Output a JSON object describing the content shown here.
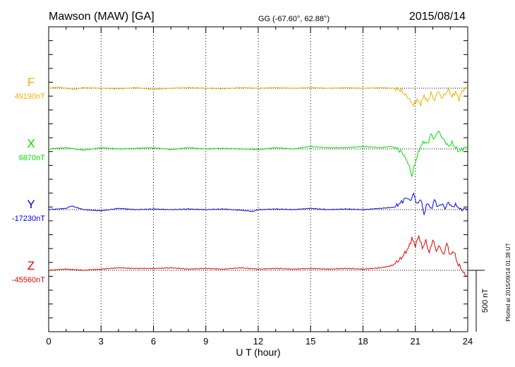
{
  "header": {
    "station": "Mawson (MAW)  [GA]",
    "coords": "GG (-67.60°,  62.88°)",
    "date": "2015/08/14"
  },
  "footer": {
    "plotted": "Plotted at 2015/09/14 01:38 UT"
  },
  "colors": {
    "F": "#f0b000",
    "X": "#00e000",
    "Y": "#0000e0",
    "Z": "#e00000",
    "axis": "#000000"
  },
  "chart_data": {
    "type": "line",
    "title": "Mawson (MAW)  [GA]",
    "xlabel": "U T (hour)",
    "xlim": [
      0,
      24
    ],
    "x_ticks": [
      "0",
      "3",
      "6",
      "9",
      "12",
      "15",
      "18",
      "21",
      "24"
    ],
    "grid": "vertical dotted",
    "scale_bar": {
      "label": "500 nT",
      "value": 500
    },
    "series": [
      {
        "name": "F",
        "baseline_label": "49190nT",
        "points": [
          [
            0,
            0
          ],
          [
            0.5,
            10
          ],
          [
            1,
            0
          ],
          [
            1.5,
            -10
          ],
          [
            2,
            5
          ],
          [
            3,
            0
          ],
          [
            4,
            -5
          ],
          [
            5,
            5
          ],
          [
            6,
            -10
          ],
          [
            7,
            0
          ],
          [
            8,
            5
          ],
          [
            9,
            0
          ],
          [
            10,
            -5
          ],
          [
            11,
            5
          ],
          [
            12,
            0
          ],
          [
            13,
            5
          ],
          [
            14,
            0
          ],
          [
            15,
            5
          ],
          [
            16,
            0
          ],
          [
            17,
            5
          ],
          [
            18,
            0
          ],
          [
            19,
            5
          ],
          [
            19.8,
            0
          ],
          [
            20.2,
            -20
          ],
          [
            20.6,
            -80
          ],
          [
            20.9,
            -140
          ],
          [
            21.1,
            -90
          ],
          [
            21.3,
            -130
          ],
          [
            21.5,
            -60
          ],
          [
            21.7,
            -110
          ],
          [
            21.9,
            -40
          ],
          [
            22.1,
            -100
          ],
          [
            22.3,
            -20
          ],
          [
            22.5,
            -80
          ],
          [
            22.7,
            -50
          ],
          [
            22.9,
            -10
          ],
          [
            23.1,
            -70
          ],
          [
            23.3,
            -30
          ],
          [
            23.5,
            -90
          ],
          [
            23.7,
            -20
          ],
          [
            24,
            10
          ]
        ]
      },
      {
        "name": "X",
        "baseline_label": "6870nT",
        "points": [
          [
            0,
            0
          ],
          [
            1,
            10
          ],
          [
            2,
            -10
          ],
          [
            3,
            10
          ],
          [
            4,
            0
          ],
          [
            5,
            5
          ],
          [
            6,
            10
          ],
          [
            7,
            -5
          ],
          [
            8,
            10
          ],
          [
            9,
            0
          ],
          [
            10,
            5
          ],
          [
            11,
            0
          ],
          [
            12,
            -5
          ],
          [
            13,
            10
          ],
          [
            14,
            0
          ],
          [
            15,
            20
          ],
          [
            16,
            10
          ],
          [
            17,
            10
          ],
          [
            18,
            20
          ],
          [
            19,
            10
          ],
          [
            19.6,
            20
          ],
          [
            20,
            0
          ],
          [
            20.3,
            -40
          ],
          [
            20.6,
            -120
          ],
          [
            20.8,
            -220
          ],
          [
            20.9,
            -160
          ],
          [
            21.1,
            -60
          ],
          [
            21.3,
            20
          ],
          [
            21.5,
            60
          ],
          [
            21.7,
            40
          ],
          [
            21.9,
            120
          ],
          [
            22.1,
            80
          ],
          [
            22.3,
            150
          ],
          [
            22.5,
            100
          ],
          [
            22.7,
            60
          ],
          [
            22.9,
            20
          ],
          [
            23.1,
            50
          ],
          [
            23.3,
            10
          ],
          [
            23.5,
            -20
          ],
          [
            23.7,
            0
          ],
          [
            24,
            20
          ]
        ]
      },
      {
        "name": "Y",
        "baseline_label": "-17230nT",
        "points": [
          [
            0,
            0
          ],
          [
            1,
            10
          ],
          [
            1.3,
            30
          ],
          [
            2,
            0
          ],
          [
            3,
            -10
          ],
          [
            4,
            10
          ],
          [
            5,
            0
          ],
          [
            6,
            5
          ],
          [
            7,
            0
          ],
          [
            8,
            5
          ],
          [
            9,
            0
          ],
          [
            10,
            5
          ],
          [
            11,
            -5
          ],
          [
            11.7,
            -15
          ],
          [
            12,
            0
          ],
          [
            13,
            5
          ],
          [
            14,
            0
          ],
          [
            15,
            10
          ],
          [
            16,
            0
          ],
          [
            17,
            5
          ],
          [
            18,
            0
          ],
          [
            19,
            10
          ],
          [
            19.8,
            20
          ],
          [
            20.2,
            60
          ],
          [
            20.5,
            100
          ],
          [
            20.7,
            70
          ],
          [
            20.9,
            130
          ],
          [
            21.1,
            40
          ],
          [
            21.3,
            90
          ],
          [
            21.5,
            -40
          ],
          [
            21.7,
            60
          ],
          [
            21.9,
            0
          ],
          [
            22.1,
            80
          ],
          [
            22.3,
            20
          ],
          [
            22.5,
            50
          ],
          [
            22.7,
            10
          ],
          [
            22.9,
            60
          ],
          [
            23.1,
            20
          ],
          [
            23.3,
            40
          ],
          [
            23.6,
            0
          ],
          [
            24,
            10
          ]
        ]
      },
      {
        "name": "Z",
        "baseline_label": "-45560nT",
        "points": [
          [
            0,
            0
          ],
          [
            1,
            10
          ],
          [
            2,
            0
          ],
          [
            3,
            10
          ],
          [
            4,
            20
          ],
          [
            5,
            15
          ],
          [
            6,
            15
          ],
          [
            7,
            20
          ],
          [
            8,
            10
          ],
          [
            9,
            15
          ],
          [
            10,
            10
          ],
          [
            11,
            20
          ],
          [
            12,
            10
          ],
          [
            13,
            15
          ],
          [
            14,
            10
          ],
          [
            15,
            15
          ],
          [
            16,
            10
          ],
          [
            17,
            15
          ],
          [
            18,
            10
          ],
          [
            19,
            20
          ],
          [
            19.7,
            40
          ],
          [
            20.2,
            100
          ],
          [
            20.6,
            180
          ],
          [
            20.8,
            260
          ],
          [
            21,
            200
          ],
          [
            21.2,
            280
          ],
          [
            21.4,
            180
          ],
          [
            21.6,
            240
          ],
          [
            21.8,
            140
          ],
          [
            22,
            250
          ],
          [
            22.2,
            160
          ],
          [
            22.4,
            200
          ],
          [
            22.6,
            120
          ],
          [
            22.8,
            220
          ],
          [
            23,
            120
          ],
          [
            23.2,
            160
          ],
          [
            23.4,
            60
          ],
          [
            23.6,
            20
          ],
          [
            23.8,
            -30
          ],
          [
            24,
            -50
          ]
        ]
      }
    ]
  }
}
